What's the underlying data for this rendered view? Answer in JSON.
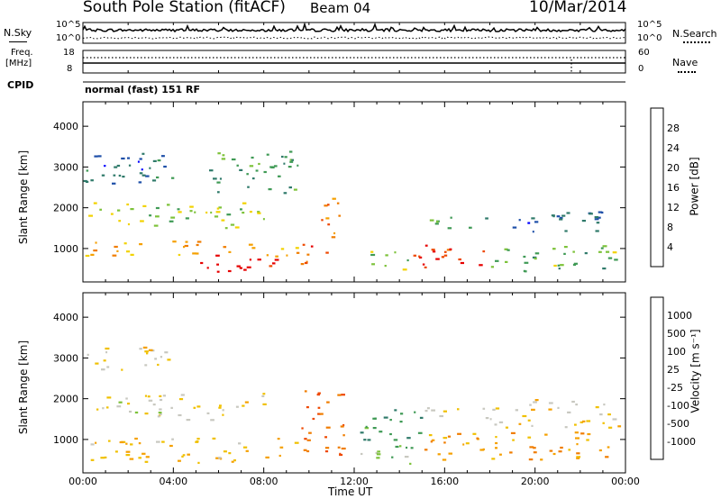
{
  "header": {
    "title": "South Pole Station (fitACF)",
    "beam": "Beam 04",
    "date": "10/Mar/2014"
  },
  "strip": {
    "nsky_label": "N.Sky",
    "nsky_ticks": [
      "10^5",
      "10^0"
    ],
    "nsearch_label": "N.Search",
    "nsearch_ticks": [
      "10^5",
      "10^0"
    ],
    "freq_label_line1": "Freq.",
    "freq_label_line2": "[MHz]",
    "freq_ticks": [
      "18",
      "8"
    ],
    "nave_label": "Nave",
    "nave_ticks": [
      "60",
      "0"
    ],
    "cpid_label": "CPID",
    "cpid_value": "normal (fast) 151 RF"
  },
  "chart_data": [
    {
      "type": "heatmap",
      "title": "",
      "xlabel": "Time UT",
      "ylabel": "Slant Range [km]",
      "x_ticks": [
        "00:00",
        "04:00",
        "08:00",
        "12:00",
        "16:00",
        "20:00",
        "00:00"
      ],
      "x_range_hours": [
        0,
        24
      ],
      "y_ticks": [
        1000,
        2000,
        3000,
        4000
      ],
      "ylim": [
        180,
        4600
      ],
      "colorbar": {
        "label": "Power [dB]",
        "ticks": [
          "28",
          "24",
          "20",
          "16",
          "12",
          "8",
          "4"
        ],
        "range": [
          0,
          30
        ],
        "colors": [
          "#0000ff",
          "#1e4fa8",
          "#2f7a6a",
          "#3f9a55",
          "#7dc23a",
          "#f2d200",
          "#f5a000",
          "#f07d00",
          "#ee4800",
          "#e60000"
        ]
      },
      "regions": [
        {
          "t0": 0.0,
          "t1": 9.5,
          "r0": 820,
          "r1": 1200,
          "value": 20
        },
        {
          "t0": 5.0,
          "t1": 9.5,
          "r0": 450,
          "r1": 850,
          "value": 29
        },
        {
          "t0": 9.5,
          "t1": 10.8,
          "r0": 600,
          "r1": 1250,
          "value": 25
        },
        {
          "t0": 10.2,
          "t1": 11.3,
          "r0": 1300,
          "r1": 2400,
          "value": 22
        },
        {
          "t0": 0.2,
          "t1": 8.0,
          "r0": 1500,
          "r1": 2150,
          "value": 14
        },
        {
          "t0": 0.0,
          "t1": 4.0,
          "r0": 2600,
          "r1": 3300,
          "value": 7
        },
        {
          "t0": 5.5,
          "t1": 9.5,
          "r0": 2300,
          "r1": 3400,
          "value": 10
        },
        {
          "t0": 12.5,
          "t1": 14.5,
          "r0": 500,
          "r1": 1000,
          "value": 15
        },
        {
          "t0": 14.5,
          "t1": 18.0,
          "r0": 500,
          "r1": 1100,
          "value": 27
        },
        {
          "t0": 18.0,
          "t1": 23.8,
          "r0": 450,
          "r1": 1100,
          "value": 12
        },
        {
          "t0": 19.0,
          "t1": 23.8,
          "r0": 1400,
          "r1": 2000,
          "value": 6
        },
        {
          "t0": 15.0,
          "t1": 18.0,
          "r0": 1500,
          "r1": 1800,
          "value": 12
        },
        {
          "t0": 0.0,
          "t1": 3.0,
          "r0": 2950,
          "r1": 3350,
          "value": 5
        }
      ]
    },
    {
      "type": "heatmap",
      "title": "",
      "xlabel": "Time UT",
      "ylabel": "Slant Range [km]",
      "x_ticks": [
        "00:00",
        "04:00",
        "08:00",
        "12:00",
        "16:00",
        "20:00",
        "00:00"
      ],
      "x_range_hours": [
        0,
        24
      ],
      "y_ticks": [
        1000,
        2000,
        3000,
        4000
      ],
      "ylim": [
        180,
        4600
      ],
      "colorbar": {
        "label": "Velocity [m s⁻¹]",
        "ticks": [
          "1000",
          "500",
          "100",
          "25",
          "-25",
          "-100",
          "-500",
          "-1000"
        ],
        "range": [
          -1200,
          1200
        ],
        "colors": [
          "#e60000",
          "#ee4800",
          "#f07d00",
          "#f5a000",
          "#f0c000",
          "#c8c8c0",
          "#7dc23a",
          "#3f9a55",
          "#2f7a6a",
          "#1e4fa8"
        ]
      },
      "regions": [
        {
          "t0": 0.0,
          "t1": 9.5,
          "r0": 450,
          "r1": 1050,
          "value": -180
        },
        {
          "t0": 9.5,
          "t1": 11.5,
          "r0": 600,
          "r1": 2300,
          "value": -700
        },
        {
          "t0": 0.3,
          "t1": 8.0,
          "r0": 1500,
          "r1": 2150,
          "value": 0
        },
        {
          "t0": 0.0,
          "t1": 4.0,
          "r0": 2700,
          "r1": 3300,
          "value": 5
        },
        {
          "t0": 12.0,
          "t1": 14.8,
          "r0": 400,
          "r1": 900,
          "value": 300
        },
        {
          "t0": 12.0,
          "t1": 15.0,
          "r0": 1000,
          "r1": 1800,
          "value": 700
        },
        {
          "t0": 15.0,
          "t1": 23.5,
          "r0": 500,
          "r1": 1200,
          "value": -400
        },
        {
          "t0": 18.0,
          "t1": 23.8,
          "r0": 1300,
          "r1": 2000,
          "value": -30
        },
        {
          "t0": 15.0,
          "t1": 18.0,
          "r0": 1500,
          "r1": 1800,
          "value": 0
        }
      ]
    }
  ],
  "colors": {
    "frame": "#000000",
    "background": "#ffffff"
  }
}
